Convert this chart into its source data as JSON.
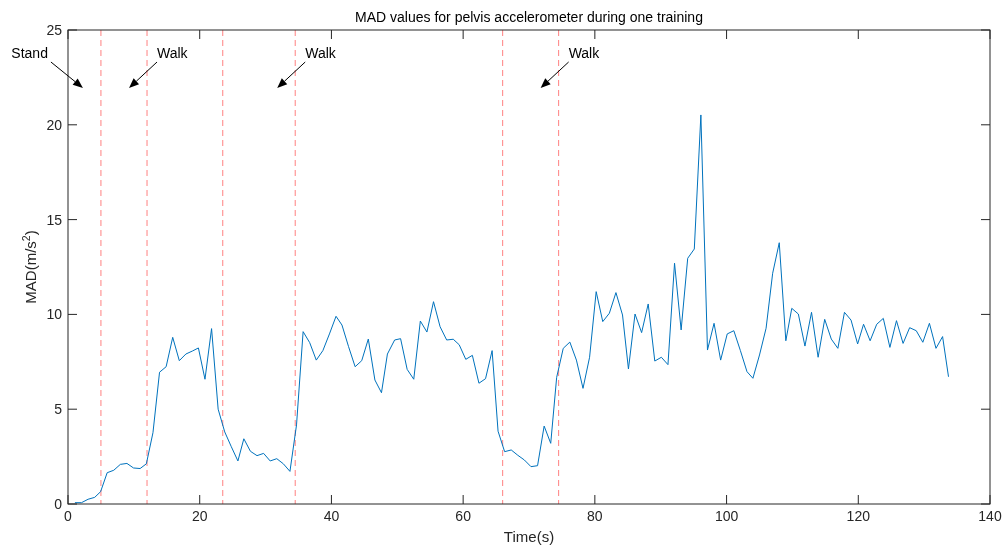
{
  "chart_data": {
    "type": "line",
    "title": "MAD values for pelvis accelerometer during one training",
    "xlabel": "Time(s)",
    "ylabel": "MAD(m/s$^{2}$)",
    "xlim": [
      0,
      140
    ],
    "xticks": [
      0,
      20,
      40,
      60,
      80,
      100,
      120,
      140
    ],
    "ylim": [
      0,
      25
    ],
    "yticks": [
      0,
      5,
      10,
      15,
      20,
      25
    ],
    "grid": false,
    "marker": "none",
    "line_style": "solid",
    "series": [
      {
        "color": "#0072bd",
        "x": [
          1.05,
          2.05,
          3.05,
          4.05,
          4.95,
          5.95,
          6.95,
          7.95,
          8.95,
          9.95,
          10.95,
          11.9,
          12.9,
          13.9,
          14.9,
          15.9,
          16.9,
          17.9,
          18.9,
          19.8,
          20.8,
          21.8,
          22.8,
          23.8,
          24.8,
          25.8,
          26.7,
          27.7,
          28.7,
          29.7,
          30.7,
          31.7,
          32.7,
          33.7,
          34.7,
          35.7,
          36.7,
          37.7,
          38.7,
          39.7,
          40.7,
          41.6,
          42.6,
          43.6,
          44.6,
          45.6,
          46.6,
          47.6,
          48.5,
          49.6,
          50.5,
          51.5,
          52.5,
          53.5,
          54.5,
          55.5,
          56.5,
          57.5,
          58.5,
          59.4,
          60.4,
          61.4,
          62.4,
          63.4,
          64.4,
          65.3,
          66.3,
          67.3,
          68.3,
          69.3,
          70.3,
          71.3,
          72.3,
          73.3,
          74.2,
          75.2,
          76.2,
          77.2,
          78.2,
          79.2,
          80.2,
          81.2,
          82.2,
          83.2,
          84.2,
          85.1,
          86.1,
          87.1,
          88.1,
          89.1,
          90.1,
          91.1,
          92.1,
          93.1,
          94.1,
          95.1,
          96.1,
          97.1,
          98.1,
          99.1,
          100.1,
          101.1,
          102.1,
          103.1,
          104,
          105,
          106,
          107,
          108,
          109,
          109.9,
          110.9,
          111.9,
          112.9,
          113.9,
          114.9,
          115.9,
          116.9,
          117.9,
          118.9,
          119.9,
          120.8,
          121.8,
          122.8,
          123.8,
          124.8,
          125.8,
          126.8,
          127.8,
          128.8,
          129.8,
          130.8,
          131.8,
          132.8,
          133.7
        ],
        "values": [
          0.07,
          0.07,
          0.25,
          0.35,
          0.65,
          1.65,
          1.78,
          2.09,
          2.14,
          1.9,
          1.87,
          2.12,
          3.76,
          6.95,
          7.24,
          8.79,
          7.56,
          7.91,
          8.07,
          8.23,
          6.58,
          9.25,
          5.0,
          3.8,
          3.02,
          2.27,
          3.44,
          2.78,
          2.55,
          2.67,
          2.27,
          2.39,
          2.12,
          1.72,
          4.17,
          9.09,
          8.51,
          7.59,
          8.09,
          8.97,
          9.9,
          9.44,
          8.3,
          7.24,
          7.56,
          8.7,
          6.54,
          5.87,
          7.91,
          8.65,
          8.72,
          7.1,
          6.58,
          9.65,
          9.07,
          10.67,
          9.35,
          8.65,
          8.69,
          8.4,
          7.63,
          7.84,
          6.37,
          6.61,
          8.09,
          3.84,
          2.76,
          2.85,
          2.57,
          2.32,
          1.97,
          2.02,
          4.11,
          3.2,
          6.68,
          8.21,
          8.54,
          7.59,
          6.1,
          7.74,
          11.2,
          9.62,
          10.06,
          11.15,
          9.97,
          7.12,
          10.02,
          9.04,
          10.55,
          7.54,
          7.74,
          7.35,
          12.7,
          9.18,
          12.96,
          13.45,
          20.52,
          8.12,
          9.53,
          7.59,
          8.97,
          9.14,
          8.09,
          6.98,
          6.63,
          7.86,
          9.27,
          12.17,
          13.78,
          8.61,
          10.32,
          10.02,
          8.33,
          10.11,
          7.74,
          9.74,
          8.7,
          8.21,
          10.11,
          9.7,
          8.44,
          9.48,
          8.61,
          9.48,
          9.79,
          8.26,
          9.67,
          8.47,
          9.3,
          9.14,
          8.53,
          9.53,
          8.21,
          8.83,
          6.71
        ]
      }
    ],
    "ref_lines": [
      {
        "axis": "x",
        "value": 5,
        "color": "#ff8080",
        "line_style": "dashed"
      },
      {
        "axis": "x",
        "value": 12,
        "color": "#ff8080",
        "line_style": "dashed"
      },
      {
        "axis": "x",
        "value": 23.5,
        "color": "#ff8080",
        "line_style": "dashed"
      },
      {
        "axis": "x",
        "value": 34.5,
        "color": "#ff8080",
        "line_style": "dashed"
      },
      {
        "axis": "x",
        "value": 66,
        "color": "#ff8080",
        "line_style": "dashed"
      },
      {
        "axis": "x",
        "value": 74.5,
        "color": "#ff8080",
        "line_style": "dashed"
      }
    ],
    "annotations": [
      "Stand",
      "Walk",
      "Walk",
      "Walk"
    ]
  }
}
